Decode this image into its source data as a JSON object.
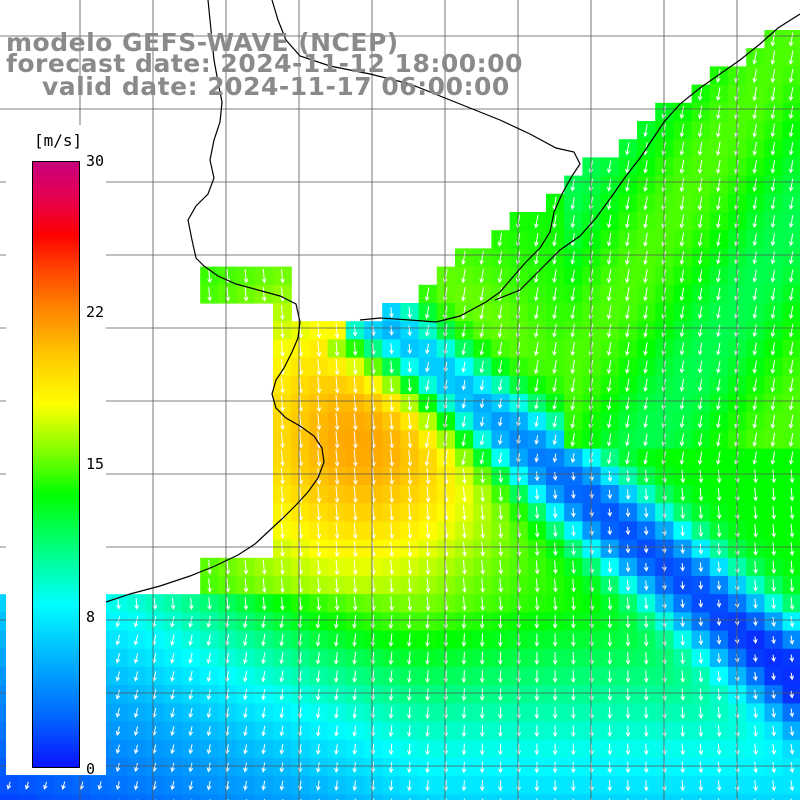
{
  "header": {
    "line1": "modelo GEFS-WAVE (NCEP)",
    "line2": "forecast date: 2024-11-12 18:00:00",
    "line3": "valid date: 2024-11-17 06:00:00"
  },
  "colorbar": {
    "unit": "[m/s]",
    "ticks": [
      "30",
      "22",
      "15",
      "8",
      "0"
    ]
  },
  "palette": {
    "land": "#ffffff",
    "grid": "#555555",
    "coast": "#000000",
    "arrow": "#ffffff",
    "title": "#8a8a8a"
  },
  "field_legend": {
    "quantity": "wind speed",
    "min": 0,
    "max": 30
  }
}
